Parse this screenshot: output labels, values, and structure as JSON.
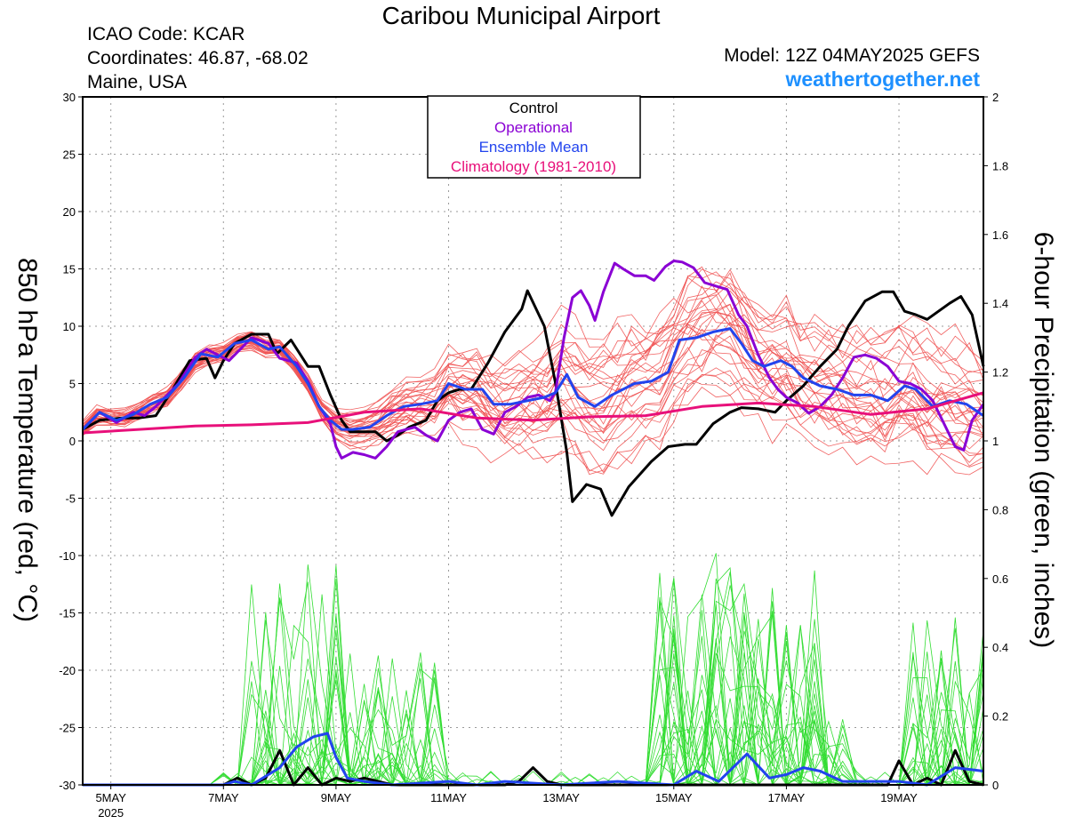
{
  "header": {
    "title": "Caribou Municipal Airport",
    "icao": "ICAO Code: KCAR",
    "coordinates": "Coordinates: 46.87, -68.02",
    "region": "Maine, USA",
    "model": "Model: 12Z 04MAY2025 GEFS",
    "site": "weathertogether.net"
  },
  "chart_data": {
    "type": "line",
    "title": "Caribou Municipal Airport",
    "ylabel_left": "850 hPa Temperature (red, °C)",
    "ylabel_right": "6-hour Precipitation (green, inches)",
    "ylim_left": [
      -30,
      30
    ],
    "ylim_right": [
      0,
      2
    ],
    "yticks_left": [
      30,
      25,
      20,
      15,
      10,
      5,
      0,
      -5,
      -10,
      -15,
      -20,
      -25,
      -30
    ],
    "yticks_right": [
      2,
      1.8,
      1.6,
      1.4,
      1.2,
      1,
      0.8,
      0.6,
      0.4,
      0.2,
      0
    ],
    "xlim_days": [
      4.5,
      20.5
    ],
    "xticks": [
      {
        "day": 5,
        "label": "5MAY",
        "sub": "2025"
      },
      {
        "day": 7,
        "label": "7MAY",
        "sub": ""
      },
      {
        "day": 9,
        "label": "9MAY",
        "sub": ""
      },
      {
        "day": 11,
        "label": "11MAY",
        "sub": ""
      },
      {
        "day": 13,
        "label": "13MAY",
        "sub": ""
      },
      {
        "day": 15,
        "label": "15MAY",
        "sub": ""
      },
      {
        "day": 17,
        "label": "17MAY",
        "sub": ""
      },
      {
        "day": 19,
        "label": "19MAY",
        "sub": ""
      }
    ],
    "grid": true,
    "legend": {
      "placement": "top-center",
      "entries": [
        {
          "label": "Control",
          "color": "#000000"
        },
        {
          "label": "Operational",
          "color": "#8a00d4"
        },
        {
          "label": "Ensemble Mean",
          "color": "#2244ee"
        },
        {
          "label": "Climatology (1981-2010)",
          "color": "#e8107a"
        }
      ]
    },
    "colors": {
      "ensemble_temp": "#f05050",
      "ensemble_precip": "#33dd33",
      "control": "#000000",
      "operational": "#8a00d4",
      "mean": "#2244ee",
      "climatology": "#e8107a"
    },
    "temperature_series": [
      {
        "name": "Control",
        "points": [
          [
            4.5,
            1
          ],
          [
            4.8,
            1.8
          ],
          [
            5.2,
            2
          ],
          [
            5.5,
            2
          ],
          [
            5.8,
            2.2
          ],
          [
            6.1,
            4.5
          ],
          [
            6.4,
            7
          ],
          [
            6.7,
            7.2
          ],
          [
            6.85,
            5.5
          ],
          [
            7,
            7
          ],
          [
            7.2,
            8.5
          ],
          [
            7.5,
            9.3
          ],
          [
            7.8,
            9.3
          ],
          [
            7.95,
            7.6
          ],
          [
            8.2,
            8.8
          ],
          [
            8.5,
            6.5
          ],
          [
            8.7,
            6.5
          ],
          [
            8.9,
            4
          ],
          [
            9.1,
            1.8
          ],
          [
            9.25,
            0.8
          ],
          [
            9.5,
            0.8
          ],
          [
            9.7,
            0.8
          ],
          [
            9.9,
            0
          ],
          [
            10.1,
            0.5
          ],
          [
            10.3,
            1.2
          ],
          [
            10.6,
            1.8
          ],
          [
            10.8,
            3.5
          ],
          [
            11,
            4.2
          ],
          [
            11.2,
            4.5
          ],
          [
            11.4,
            4.5
          ],
          [
            11.7,
            6.8
          ],
          [
            12,
            9.5
          ],
          [
            12.3,
            11.5
          ],
          [
            12.4,
            13.1
          ],
          [
            12.7,
            10
          ],
          [
            12.9,
            5
          ],
          [
            13.1,
            -1
          ],
          [
            13.2,
            -5.3
          ],
          [
            13.45,
            -3.8
          ],
          [
            13.7,
            -4.2
          ],
          [
            13.9,
            -6.5
          ],
          [
            14.2,
            -4
          ],
          [
            14.6,
            -1.8
          ],
          [
            14.9,
            -0.5
          ],
          [
            15.2,
            -0.3
          ],
          [
            15.4,
            -0.3
          ],
          [
            15.7,
            1.5
          ],
          [
            16,
            2.5
          ],
          [
            16.2,
            2.9
          ],
          [
            16.5,
            2.8
          ],
          [
            16.8,
            2.5
          ],
          [
            17,
            3.5
          ],
          [
            17.3,
            4.8
          ],
          [
            17.6,
            6.5
          ],
          [
            17.9,
            8
          ],
          [
            18.1,
            10
          ],
          [
            18.4,
            12.2
          ],
          [
            18.7,
            13
          ],
          [
            18.9,
            13
          ],
          [
            19.1,
            11.3
          ],
          [
            19.3,
            11
          ],
          [
            19.5,
            10.6
          ],
          [
            19.9,
            12
          ],
          [
            20.1,
            12.6
          ],
          [
            20.3,
            11
          ],
          [
            20.5,
            6.5
          ]
        ]
      },
      {
        "name": "Operational",
        "points": [
          [
            4.5,
            1
          ],
          [
            4.8,
            2.5
          ],
          [
            5.1,
            1.6
          ],
          [
            5.4,
            2.5
          ],
          [
            5.6,
            2.2
          ],
          [
            5.8,
            3
          ],
          [
            6,
            4
          ],
          [
            6.2,
            5
          ],
          [
            6.5,
            7.3
          ],
          [
            6.7,
            8
          ],
          [
            6.9,
            7.5
          ],
          [
            7.1,
            7
          ],
          [
            7.3,
            8
          ],
          [
            7.5,
            9
          ],
          [
            7.8,
            8.5
          ],
          [
            8,
            7.2
          ],
          [
            8.3,
            6.8
          ],
          [
            8.5,
            5.2
          ],
          [
            8.7,
            3
          ],
          [
            8.9,
            1.5
          ],
          [
            9,
            -0.5
          ],
          [
            9.1,
            -1.5
          ],
          [
            9.3,
            -1
          ],
          [
            9.5,
            -1.2
          ],
          [
            9.7,
            -1.5
          ],
          [
            9.9,
            -0.5
          ],
          [
            10.1,
            0.8
          ],
          [
            10.4,
            1.2
          ],
          [
            10.6,
            0.5
          ],
          [
            10.8,
            0
          ],
          [
            11,
            1.8
          ],
          [
            11.2,
            2.5
          ],
          [
            11.4,
            2.8
          ],
          [
            11.6,
            1
          ],
          [
            11.8,
            0.6
          ],
          [
            12,
            2.5
          ],
          [
            12.2,
            3
          ],
          [
            12.4,
            3.8
          ],
          [
            12.6,
            4
          ],
          [
            12.8,
            3.5
          ],
          [
            12.9,
            4.3
          ],
          [
            13.05,
            9
          ],
          [
            13.2,
            12.5
          ],
          [
            13.35,
            13.1
          ],
          [
            13.5,
            11.8
          ],
          [
            13.6,
            10.5
          ],
          [
            13.75,
            13
          ],
          [
            13.95,
            15.5
          ],
          [
            14.1,
            15
          ],
          [
            14.3,
            14.4
          ],
          [
            14.5,
            14.4
          ],
          [
            14.65,
            14
          ],
          [
            14.85,
            15.2
          ],
          [
            15,
            15.7
          ],
          [
            15.15,
            15.6
          ],
          [
            15.35,
            15.1
          ],
          [
            15.55,
            13.8
          ],
          [
            15.75,
            13.5
          ],
          [
            15.95,
            13.2
          ],
          [
            16.15,
            11
          ],
          [
            16.3,
            10
          ],
          [
            16.5,
            7.5
          ],
          [
            16.7,
            5.5
          ],
          [
            16.85,
            4.5
          ],
          [
            17,
            3.8
          ],
          [
            17.2,
            3.3
          ],
          [
            17.4,
            2.4
          ],
          [
            17.6,
            3
          ],
          [
            17.8,
            4
          ],
          [
            18,
            5.5
          ],
          [
            18.2,
            7.3
          ],
          [
            18.4,
            7.5
          ],
          [
            18.6,
            7.2
          ],
          [
            18.8,
            6.5
          ],
          [
            19,
            5.2
          ],
          [
            19.2,
            5
          ],
          [
            19.4,
            4.5
          ],
          [
            19.6,
            3.5
          ],
          [
            19.8,
            1.5
          ],
          [
            20,
            -0.5
          ],
          [
            20.15,
            -0.8
          ],
          [
            20.3,
            1.8
          ],
          [
            20.5,
            3.2
          ]
        ]
      },
      {
        "name": "Ensemble Mean",
        "points": [
          [
            4.5,
            1
          ],
          [
            4.8,
            2.5
          ],
          [
            5.1,
            1.8
          ],
          [
            5.4,
            2.3
          ],
          [
            5.7,
            3.2
          ],
          [
            6,
            3.8
          ],
          [
            6.3,
            5.5
          ],
          [
            6.6,
            7.6
          ],
          [
            6.9,
            7.3
          ],
          [
            7.2,
            8.5
          ],
          [
            7.5,
            8.8
          ],
          [
            7.8,
            8
          ],
          [
            8,
            8.2
          ],
          [
            8.3,
            6.5
          ],
          [
            8.5,
            5
          ],
          [
            8.7,
            3
          ],
          [
            8.9,
            1.8
          ],
          [
            9.1,
            1
          ],
          [
            9.3,
            1
          ],
          [
            9.6,
            1.2
          ],
          [
            9.9,
            2.2
          ],
          [
            10.2,
            3
          ],
          [
            10.5,
            3.2
          ],
          [
            10.8,
            3.5
          ],
          [
            11,
            5
          ],
          [
            11.3,
            4.5
          ],
          [
            11.6,
            4.5
          ],
          [
            11.8,
            3.2
          ],
          [
            12.1,
            3.2
          ],
          [
            12.4,
            3.5
          ],
          [
            12.7,
            3.8
          ],
          [
            12.9,
            4.2
          ],
          [
            13.1,
            5.8
          ],
          [
            13.3,
            3.8
          ],
          [
            13.6,
            3
          ],
          [
            13.9,
            4
          ],
          [
            14.3,
            5
          ],
          [
            14.6,
            5.2
          ],
          [
            14.9,
            6
          ],
          [
            15.1,
            8.8
          ],
          [
            15.4,
            9
          ],
          [
            15.7,
            9.5
          ],
          [
            16,
            9.8
          ],
          [
            16.2,
            8.5
          ],
          [
            16.4,
            7
          ],
          [
            16.6,
            6.5
          ],
          [
            16.9,
            7
          ],
          [
            17.1,
            6.5
          ],
          [
            17.3,
            5.5
          ],
          [
            17.6,
            4.8
          ],
          [
            17.9,
            4.5
          ],
          [
            18.2,
            4
          ],
          [
            18.5,
            4
          ],
          [
            18.8,
            3.5
          ],
          [
            19.1,
            4.8
          ],
          [
            19.3,
            4.5
          ],
          [
            19.6,
            3
          ],
          [
            19.9,
            3.5
          ],
          [
            20.2,
            3.2
          ],
          [
            20.5,
            2.2
          ]
        ]
      },
      {
        "name": "Climatology (1981-2010)",
        "points": [
          [
            4.5,
            0.7
          ],
          [
            5.5,
            1
          ],
          [
            6.5,
            1.3
          ],
          [
            7.5,
            1.4
          ],
          [
            8.5,
            1.6
          ],
          [
            9.5,
            2.5
          ],
          [
            10.5,
            2.8
          ],
          [
            11.5,
            2
          ],
          [
            12.5,
            1.8
          ],
          [
            13.5,
            2.1
          ],
          [
            14.5,
            2.2
          ],
          [
            15.5,
            3
          ],
          [
            16.5,
            3.3
          ],
          [
            17.5,
            3
          ],
          [
            18.5,
            2.3
          ],
          [
            19.5,
            2.8
          ],
          [
            20.5,
            4.2
          ]
        ]
      }
    ],
    "precip_series": [
      {
        "name": "Control",
        "points": [
          [
            4.5,
            0
          ],
          [
            7,
            0
          ],
          [
            7.25,
            0.02
          ],
          [
            7.5,
            0
          ],
          [
            7.75,
            0.02
          ],
          [
            8,
            0.1
          ],
          [
            8.25,
            0
          ],
          [
            8.5,
            0.05
          ],
          [
            8.75,
            0
          ],
          [
            9,
            0.02
          ],
          [
            9.25,
            0.01
          ],
          [
            9.5,
            0.02
          ],
          [
            9.75,
            0.01
          ],
          [
            10,
            0
          ],
          [
            12,
            0
          ],
          [
            12.25,
            0.01
          ],
          [
            12.5,
            0.05
          ],
          [
            12.75,
            0.01
          ],
          [
            13,
            0
          ],
          [
            18.8,
            0
          ],
          [
            19,
            0.07
          ],
          [
            19.25,
            0
          ],
          [
            19.5,
            0.02
          ],
          [
            19.75,
            0
          ],
          [
            20,
            0.1
          ],
          [
            20.25,
            0.01
          ],
          [
            20.5,
            0
          ]
        ]
      },
      {
        "name": "Ensemble Mean",
        "points": [
          [
            4.5,
            0
          ],
          [
            6.5,
            0
          ],
          [
            7,
            0
          ],
          [
            7.2,
            0.01
          ],
          [
            7.5,
            0
          ],
          [
            7.8,
            0.03
          ],
          [
            8,
            0.05
          ],
          [
            8.3,
            0.11
          ],
          [
            8.6,
            0.14
          ],
          [
            8.85,
            0.15
          ],
          [
            9,
            0.08
          ],
          [
            9.2,
            0.02
          ],
          [
            9.5,
            0.01
          ],
          [
            10,
            0
          ],
          [
            11,
            0.01
          ],
          [
            11.5,
            0
          ],
          [
            12,
            0.01
          ],
          [
            13,
            0
          ],
          [
            14,
            0.01
          ],
          [
            15,
            0
          ],
          [
            15.4,
            0.04
          ],
          [
            15.8,
            0.01
          ],
          [
            16.3,
            0.09
          ],
          [
            16.7,
            0.02
          ],
          [
            17,
            0.03
          ],
          [
            17.3,
            0.05
          ],
          [
            17.6,
            0.04
          ],
          [
            18,
            0.01
          ],
          [
            18.5,
            0.01
          ],
          [
            19,
            0.01
          ],
          [
            19.5,
            0
          ],
          [
            20,
            0.05
          ],
          [
            20.5,
            0.04
          ]
        ]
      }
    ]
  }
}
